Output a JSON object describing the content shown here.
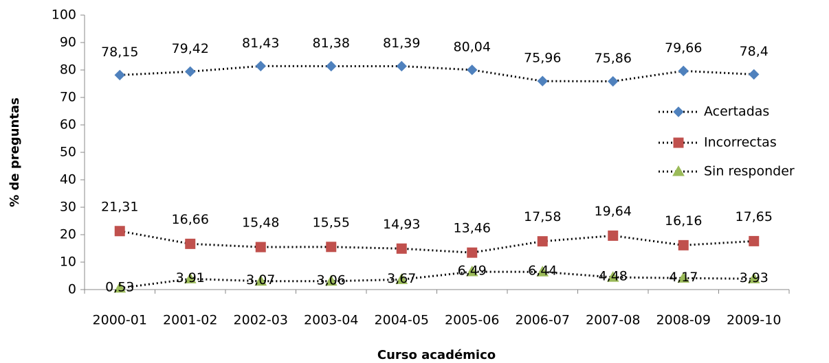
{
  "chart_data": {
    "type": "line",
    "x_label": "Curso académico",
    "y_label": "% de preguntas",
    "categories": [
      "2000-01",
      "2001-02",
      "2002-03",
      "2003-04",
      "2004-05",
      "2005-06",
      "2006-07",
      "2007-08",
      "2008-09",
      "2009-10"
    ],
    "series": [
      {
        "name": "Acertadas",
        "color": "#4f81bd",
        "marker": "diamond",
        "values": [
          78.15,
          79.42,
          81.43,
          81.38,
          81.39,
          80.04,
          75.96,
          75.86,
          79.66,
          78.4
        ],
        "value_labels": [
          "78,15",
          "79,42",
          "81,43",
          "81,38",
          "81,39",
          "80,04",
          "75,96",
          "75,86",
          "79,66",
          "78,4"
        ]
      },
      {
        "name": "Incorrectas",
        "color": "#c0504d",
        "marker": "square",
        "values": [
          21.31,
          16.66,
          15.48,
          15.55,
          14.93,
          13.46,
          17.58,
          19.64,
          16.16,
          17.65
        ],
        "value_labels": [
          "21,31",
          "16,66",
          "15,48",
          "15,55",
          "14,93",
          "13,46",
          "17,58",
          "19,64",
          "16,16",
          "17,65"
        ]
      },
      {
        "name": "Sin responder",
        "color": "#9bbb59",
        "marker": "triangle",
        "values": [
          0.53,
          3.91,
          3.07,
          3.06,
          3.67,
          6.49,
          6.44,
          4.48,
          4.17,
          3.93
        ],
        "value_labels": [
          "0,53",
          "3,91",
          "3,07",
          "3,06",
          "3,67",
          "6,49",
          "6,44",
          "4,48",
          "4,17",
          "3,93"
        ]
      }
    ],
    "ylim": [
      0,
      100
    ],
    "yticks": [
      0,
      10,
      20,
      30,
      40,
      50,
      60,
      70,
      80,
      90,
      100
    ],
    "grid": false,
    "legend": "right",
    "line_style": "dotted"
  }
}
